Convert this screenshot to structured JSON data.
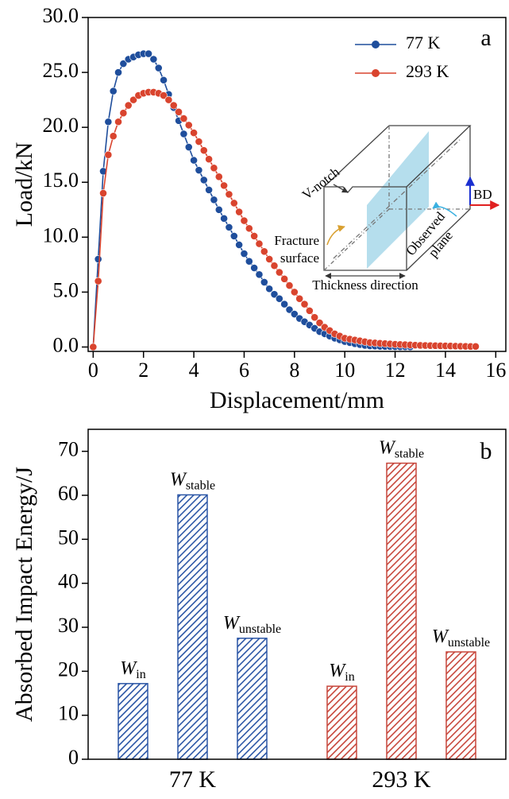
{
  "chart_data": [
    {
      "type": "line",
      "panel_label": "a",
      "xlabel": "Displacement/mm",
      "ylabel": "Load/kN",
      "xlim": [
        -0.2,
        16.4
      ],
      "ylim": [
        -0.4,
        30
      ],
      "xticks": [
        0,
        2,
        4,
        6,
        8,
        10,
        12,
        14,
        16
      ],
      "yticks": [
        {
          "value": 0,
          "label": "0.0"
        },
        {
          "value": 5,
          "label": "5.0"
        },
        {
          "value": 10,
          "label": "10.0"
        },
        {
          "value": 15,
          "label": "15.0"
        },
        {
          "value": 20,
          "label": "20.0"
        },
        {
          "value": 25,
          "label": "25.0"
        },
        {
          "value": 30,
          "label": "30.0"
        }
      ],
      "legend": "upper right",
      "x": [
        0,
        0.2,
        0.4,
        0.6,
        0.8,
        1,
        1.2,
        1.4,
        1.6,
        1.8,
        2,
        2.2,
        2.4,
        2.6,
        2.8,
        3,
        3.2,
        3.4,
        3.6,
        3.8,
        4,
        4.2,
        4.4,
        4.6,
        4.8,
        5,
        5.2,
        5.4,
        5.6,
        5.8,
        6,
        6.2,
        6.4,
        6.6,
        6.8,
        7,
        7.2,
        7.4,
        7.6,
        7.8,
        8,
        8.2,
        8.4,
        8.6,
        8.8,
        9,
        9.2,
        9.4,
        9.6,
        9.8,
        10,
        10.2,
        10.4,
        10.6,
        10.8,
        11,
        11.2,
        11.4,
        11.6,
        11.8,
        12,
        12.2,
        12.4,
        12.6,
        12.8,
        13,
        13.2,
        13.4,
        13.6,
        13.8,
        14,
        14.2,
        14.4,
        14.6,
        14.8,
        15,
        15.2
      ],
      "series": [
        {
          "name": "77 K",
          "color": "#1f4e9c",
          "values": [
            0,
            8,
            16,
            20.5,
            23.3,
            25,
            25.8,
            26.2,
            26.4,
            26.6,
            26.7,
            26.7,
            26.2,
            25.4,
            24.3,
            23,
            21.8,
            20.6,
            19.4,
            18.2,
            17,
            16.1,
            15.2,
            14.3,
            13.4,
            12.5,
            11.7,
            10.9,
            10.1,
            9.3,
            8.5,
            7.8,
            7.2,
            6.6,
            5.9,
            5.3,
            4.8,
            4.4,
            3.9,
            3.4,
            3,
            2.6,
            2.3,
            2,
            1.7,
            1.4,
            1.2,
            1,
            0.8,
            0.65,
            0.5,
            0.4,
            0.3,
            0.22,
            0.15,
            0.1,
            0.08,
            0.06,
            0.05,
            0.04,
            0.03,
            0.02,
            0.02,
            0.01,
            null,
            null,
            null,
            null,
            null,
            null,
            null,
            null,
            null,
            null,
            null,
            null,
            null
          ]
        },
        {
          "name": "293 K",
          "color": "#d9442e",
          "values": [
            0,
            6,
            14,
            17.5,
            19.2,
            20.5,
            21.3,
            22,
            22.5,
            22.9,
            23.1,
            23.2,
            23.2,
            23.1,
            22.9,
            22.5,
            22,
            21.4,
            20.8,
            20.2,
            19.5,
            18.7,
            17.9,
            17.1,
            16.3,
            15.5,
            14.7,
            13.9,
            13.1,
            12.3,
            11.5,
            10.8,
            10.1,
            9.4,
            8.7,
            8,
            7.4,
            6.8,
            6.2,
            5.6,
            5,
            4.4,
            3.9,
            3.3,
            2.7,
            2.2,
            1.8,
            1.5,
            1.2,
            1,
            0.8,
            0.72,
            0.64,
            0.56,
            0.48,
            0.4,
            0.37,
            0.34,
            0.31,
            0.28,
            0.25,
            0.23,
            0.21,
            0.19,
            0.17,
            0.15,
            0.14,
            0.13,
            0.12,
            0.11,
            0.1,
            0.09,
            0.08,
            0.07,
            0.06,
            0.05,
            0.05
          ]
        }
      ],
      "annotations": [
        "V-notch",
        "BD",
        "Fracture",
        "surface",
        "Observed",
        "plane",
        "Thickness direction"
      ]
    },
    {
      "type": "bar",
      "panel_label": "b",
      "ylabel": "Absorbed Impact Energy/J",
      "categories": [
        "77 K",
        "293 K"
      ],
      "category_colors": [
        "#2a55a5",
        "#c7463b"
      ],
      "hatch": true,
      "ylim": [
        0,
        75
      ],
      "yticks": [
        0,
        10,
        20,
        30,
        40,
        50,
        60,
        70
      ],
      "series": [
        {
          "name": {
            "base": "W",
            "sub": "in"
          },
          "values": [
            17.2,
            16.6
          ]
        },
        {
          "name": {
            "base": "W",
            "sub": "stable"
          },
          "values": [
            60.1,
            67.3
          ]
        },
        {
          "name": {
            "base": "W",
            "sub": "unstable"
          },
          "values": [
            27.5,
            24.4
          ]
        }
      ]
    }
  ]
}
